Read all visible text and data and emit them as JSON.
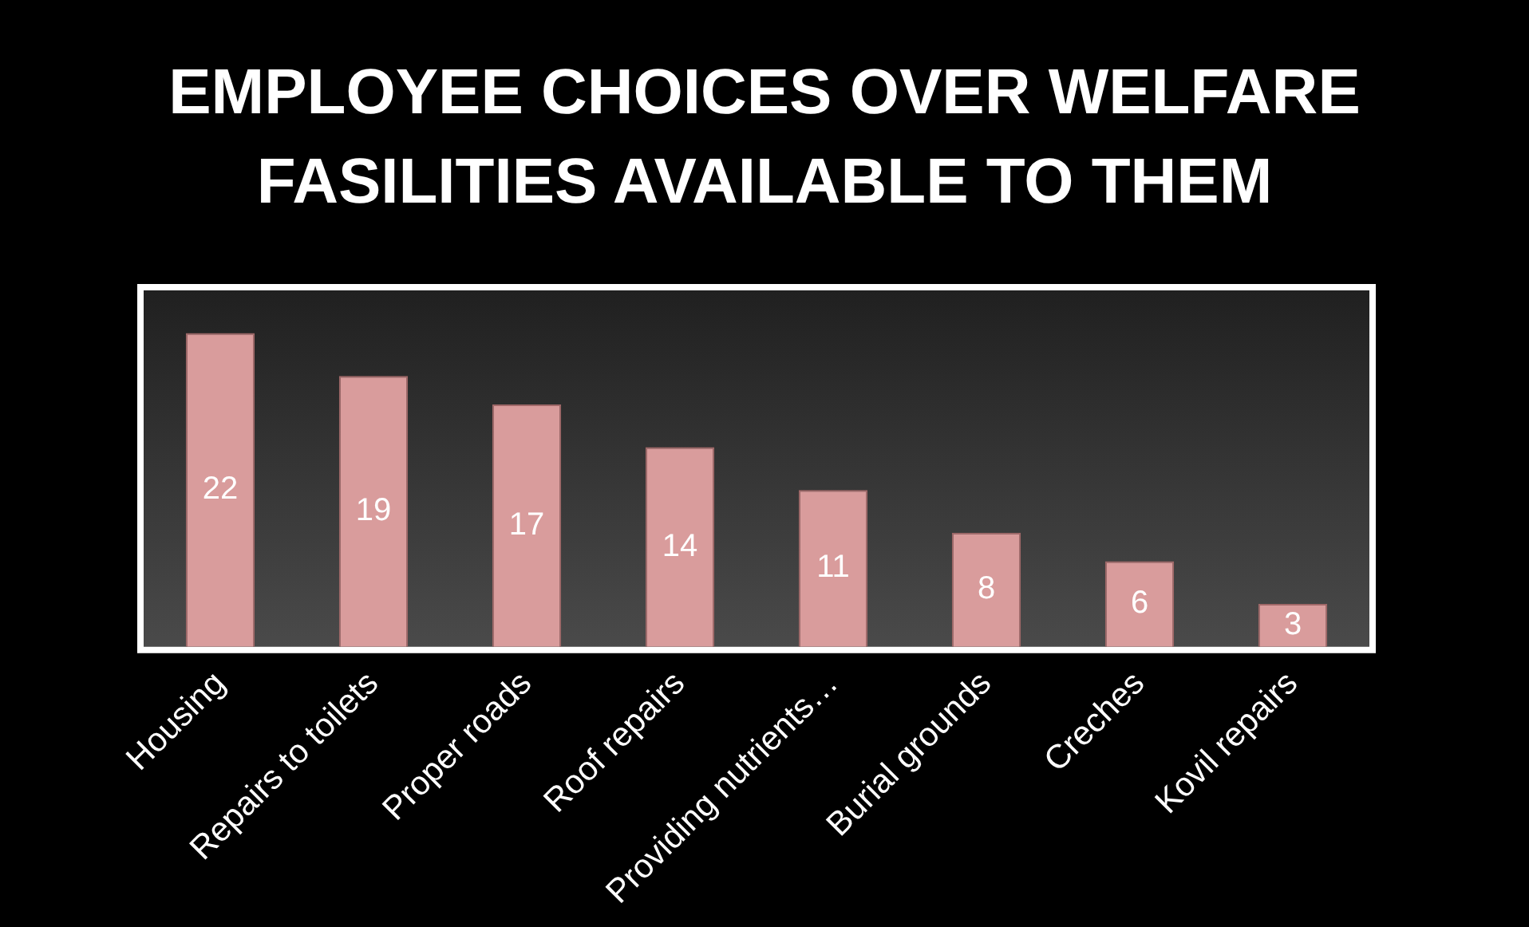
{
  "chart_data": {
    "type": "bar",
    "title": "EMPLOYEE CHOICES OVER WELFARE FASILITIES AVAILABLE TO THEM",
    "categories": [
      "Housing",
      "Repairs to toilets",
      "Proper roads",
      "Roof repairs",
      "Providing nutrients…",
      "Burial grounds",
      "Creches",
      "Kovil repairs"
    ],
    "values": [
      22,
      19,
      17,
      14,
      11,
      8,
      6,
      3
    ],
    "color": "#d99c9c",
    "data_labels": true,
    "grid": false,
    "legend": false
  }
}
